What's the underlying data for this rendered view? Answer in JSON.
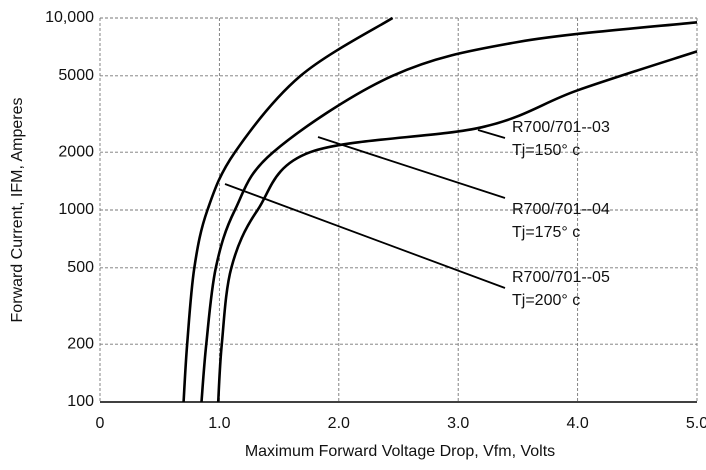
{
  "chart_data": {
    "type": "line",
    "x_label": "Maximum Forward Voltage Drop, Vfm, Volts",
    "y_label": "Forward Current, IFM, Amperes",
    "log_y": true,
    "grid": true,
    "xlim": [
      0,
      5
    ],
    "ylim": [
      100,
      10000
    ],
    "xticks": [
      0,
      {
        "value": 1,
        "label": "1.0"
      },
      {
        "value": 2,
        "label": "2.0"
      },
      {
        "value": 3,
        "label": "3.0"
      },
      {
        "value": 4,
        "label": "4.0"
      },
      {
        "value": 5,
        "label": "5.0"
      }
    ],
    "yticks": [
      100,
      200,
      500,
      1000,
      2000,
      5000,
      {
        "value": 10000,
        "label": "10,000"
      }
    ],
    "series": [
      {
        "name": "R700/701--05",
        "note": "Tj=200° c",
        "color": "#000000",
        "x": [
          0.7,
          0.73,
          0.79,
          0.9,
          1.13,
          1.68,
          2.45
        ],
        "values": [
          100,
          200,
          500,
          1000,
          2000,
          5000,
          10000
        ]
      },
      {
        "name": "R700/701--04",
        "note": "Tj=175° c",
        "color": "#000000",
        "x": [
          0.85,
          0.89,
          0.97,
          1.13,
          1.45,
          2.45,
          3.5,
          5.0
        ],
        "values": [
          100,
          200,
          500,
          1000,
          2000,
          5000,
          7500,
          9500
        ]
      },
      {
        "name": "R700/701--03",
        "note": "Tj=150° c",
        "color": "#000000",
        "x": [
          0.99,
          1.02,
          1.1,
          1.32,
          1.76,
          3.2,
          4.0,
          5.0
        ],
        "values": [
          100,
          200,
          500,
          1000,
          2000,
          2700,
          4200,
          6700
        ]
      }
    ]
  }
}
